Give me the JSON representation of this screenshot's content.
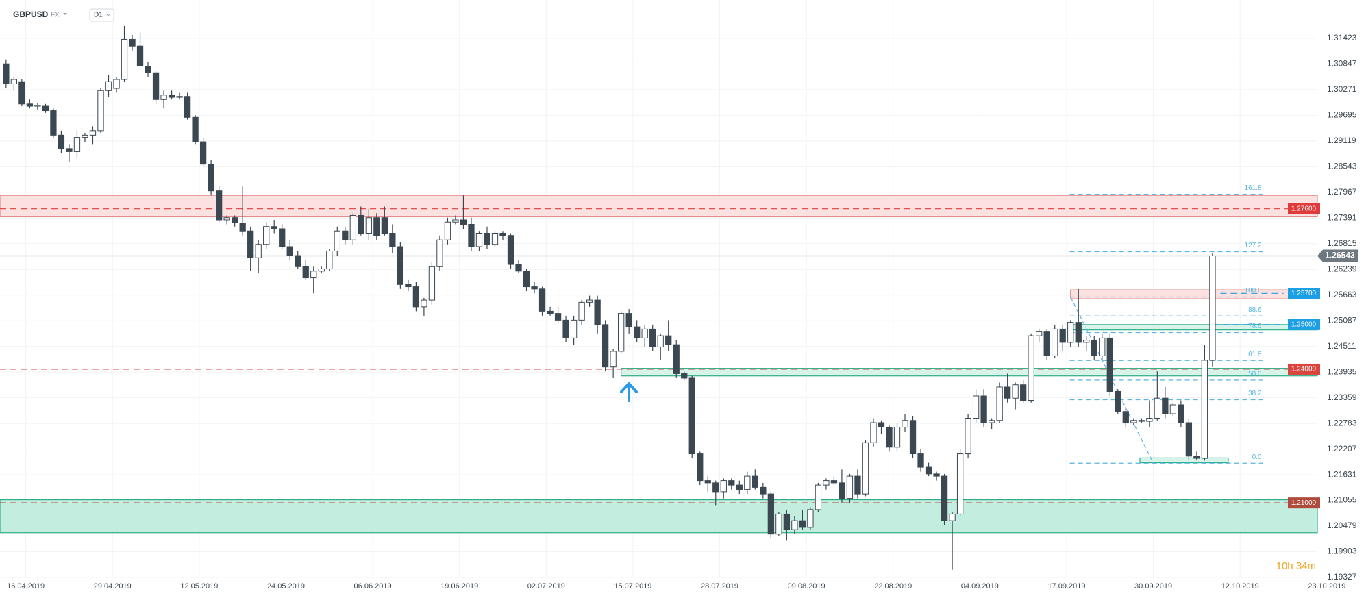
{
  "chart_data": {
    "type": "candlestick",
    "title": "GBPUSD",
    "market": "FX",
    "interval": "D1",
    "timer": "10h 34m",
    "xlim": [
      -0.77,
      166.3
    ],
    "ylim": [
      1.19327,
      1.32283
    ],
    "xticks": [
      {
        "value": 2.5,
        "label": "16.04.2019"
      },
      {
        "value": 13.5,
        "label": "29.04.2019"
      },
      {
        "value": 24.5,
        "label": "12.05.2019"
      },
      {
        "value": 35.5,
        "label": "24.05.2019"
      },
      {
        "value": 46.5,
        "label": "06.06.2019"
      },
      {
        "value": 57.5,
        "label": "19.06.2019"
      },
      {
        "value": 68.5,
        "label": "02.07.2019"
      },
      {
        "value": 79.5,
        "label": "15.07.2019"
      },
      {
        "value": 90.5,
        "label": "28.07.2019"
      },
      {
        "value": 101.5,
        "label": "09.08.2019"
      },
      {
        "value": 112.5,
        "label": "22.08.2019"
      },
      {
        "value": 123.5,
        "label": "04.09.2019"
      },
      {
        "value": 134.5,
        "label": "17.09.2019"
      },
      {
        "value": 145.5,
        "label": "30.09.2019"
      },
      {
        "value": 156.5,
        "label": "12.10.2019"
      },
      {
        "value": 167.5,
        "label": "23.10.2019"
      }
    ],
    "yticks": [
      1.31423,
      1.30847,
      1.30271,
      1.29695,
      1.29119,
      1.28543,
      1.27967,
      1.27391,
      1.26815,
      1.26239,
      1.25663,
      1.25087,
      1.24511,
      1.23935,
      1.23359,
      1.22783,
      1.22207,
      1.21631,
      1.21055,
      1.20479,
      1.19903,
      1.19327
    ],
    "grid": true,
    "up_color": "#ffffff",
    "down_color": "#3b4852",
    "ohlc": [
      [
        1.3085,
        1.3095,
        1.303,
        1.304
      ],
      [
        1.304,
        1.3055,
        1.3025,
        1.305
      ],
      [
        1.3045,
        1.305,
        1.299,
        1.2995
      ],
      [
        1.2995,
        1.3005,
        1.2985,
        1.299
      ],
      [
        1.299,
        1.2998,
        1.2982,
        1.2992
      ],
      [
        1.299,
        1.2995,
        1.2975,
        1.298
      ],
      [
        1.298,
        1.2985,
        1.292,
        1.2925
      ],
      [
        1.2925,
        1.2935,
        1.2885,
        1.2895
      ],
      [
        1.2895,
        1.2905,
        1.2865,
        1.2888
      ],
      [
        1.2888,
        1.2935,
        1.2875,
        1.292
      ],
      [
        1.292,
        1.293,
        1.291,
        1.2925
      ],
      [
        1.2925,
        1.2945,
        1.2905,
        1.2935
      ],
      [
        1.2935,
        1.303,
        1.293,
        1.3025
      ],
      [
        1.3025,
        1.306,
        1.301,
        1.3045
      ],
      [
        1.303,
        1.3055,
        1.302,
        1.305
      ],
      [
        1.305,
        1.317,
        1.3045,
        1.314
      ],
      [
        1.314,
        1.315,
        1.3115,
        1.3125
      ],
      [
        1.3125,
        1.3155,
        1.308,
        1.308
      ],
      [
        1.308,
        1.309,
        1.3055,
        1.3065
      ],
      [
        1.3065,
        1.307,
        1.2995,
        1.3005
      ],
      [
        1.3005,
        1.3025,
        1.2985,
        1.3015
      ],
      [
        1.3015,
        1.3025,
        1.3005,
        1.301
      ],
      [
        1.301,
        1.302,
        1.3005,
        1.3012
      ],
      [
        1.3012,
        1.302,
        1.296,
        1.2965
      ],
      [
        1.2965,
        1.297,
        1.2905,
        1.291
      ],
      [
        1.291,
        1.292,
        1.2855,
        1.286
      ],
      [
        1.286,
        1.287,
        1.279,
        1.28
      ],
      [
        1.28,
        1.281,
        1.273,
        1.2735
      ],
      [
        1.2735,
        1.2745,
        1.2725,
        1.274
      ],
      [
        1.274,
        1.2745,
        1.272,
        1.2728
      ],
      [
        1.2728,
        1.281,
        1.27,
        1.271
      ],
      [
        1.271,
        1.272,
        1.262,
        1.265
      ],
      [
        1.265,
        1.269,
        1.2615,
        1.268
      ],
      [
        1.268,
        1.273,
        1.267,
        1.272
      ],
      [
        1.272,
        1.2735,
        1.2705,
        1.2715
      ],
      [
        1.2715,
        1.2725,
        1.267,
        1.2675
      ],
      [
        1.2675,
        1.269,
        1.2645,
        1.2655
      ],
      [
        1.2655,
        1.2665,
        1.2625,
        1.263
      ],
      [
        1.263,
        1.2645,
        1.26,
        1.2605
      ],
      [
        1.2605,
        1.263,
        1.257,
        1.262
      ],
      [
        1.262,
        1.263,
        1.2615,
        1.2625
      ],
      [
        1.2625,
        1.267,
        1.262,
        1.2665
      ],
      [
        1.2665,
        1.272,
        1.2655,
        1.271
      ],
      [
        1.271,
        1.272,
        1.268,
        1.269
      ],
      [
        1.269,
        1.275,
        1.268,
        1.2745
      ],
      [
        1.2745,
        1.2765,
        1.27,
        1.2705
      ],
      [
        1.2705,
        1.276,
        1.269,
        1.274
      ],
      [
        1.274,
        1.275,
        1.269,
        1.27
      ],
      [
        1.274,
        1.2765,
        1.27,
        1.2705
      ],
      [
        1.2705,
        1.2725,
        1.266,
        1.2675
      ],
      [
        1.2675,
        1.2685,
        1.258,
        1.259
      ],
      [
        1.259,
        1.26,
        1.2575,
        1.2585
      ],
      [
        1.2585,
        1.2595,
        1.253,
        1.254
      ],
      [
        1.254,
        1.256,
        1.252,
        1.2555
      ],
      [
        1.2555,
        1.264,
        1.2545,
        1.263
      ],
      [
        1.263,
        1.27,
        1.262,
        1.269
      ],
      [
        1.269,
        1.274,
        1.268,
        1.273
      ],
      [
        1.273,
        1.2745,
        1.2725,
        1.2735
      ],
      [
        1.2735,
        1.279,
        1.2715,
        1.2725
      ],
      [
        1.2725,
        1.274,
        1.2665,
        1.2675
      ],
      [
        1.2675,
        1.271,
        1.2665,
        1.2705
      ],
      [
        1.2705,
        1.272,
        1.267,
        1.268
      ],
      [
        1.268,
        1.271,
        1.2675,
        1.2705
      ],
      [
        1.2705,
        1.271,
        1.269,
        1.27
      ],
      [
        1.27,
        1.2705,
        1.2625,
        1.2635
      ],
      [
        1.2635,
        1.2645,
        1.2615,
        1.262
      ],
      [
        1.262,
        1.2625,
        1.2575,
        1.2585
      ],
      [
        1.2585,
        1.2595,
        1.257,
        1.258
      ],
      [
        1.258,
        1.2585,
        1.252,
        1.253
      ],
      [
        1.253,
        1.254,
        1.252,
        1.2525
      ],
      [
        1.2525,
        1.254,
        1.2505,
        1.251
      ],
      [
        1.251,
        1.252,
        1.246,
        1.247
      ],
      [
        1.247,
        1.252,
        1.2455,
        1.251
      ],
      [
        1.251,
        1.2555,
        1.25,
        1.255
      ],
      [
        1.255,
        1.2565,
        1.254,
        1.2555
      ],
      [
        1.2555,
        1.2565,
        1.248,
        1.25
      ],
      [
        1.25,
        1.251,
        1.2395,
        1.2405
      ],
      [
        1.2405,
        1.2445,
        1.238,
        1.244
      ],
      [
        1.244,
        1.253,
        1.2435,
        1.2525
      ],
      [
        1.2525,
        1.2535,
        1.248,
        1.2495
      ],
      [
        1.2495,
        1.251,
        1.246,
        1.247
      ],
      [
        1.247,
        1.25,
        1.245,
        1.249
      ],
      [
        1.249,
        1.25,
        1.244,
        1.245
      ],
      [
        1.245,
        1.248,
        1.242,
        1.2475
      ],
      [
        1.2475,
        1.251,
        1.244,
        1.2455
      ],
      [
        1.2455,
        1.2465,
        1.238,
        1.239
      ],
      [
        1.239,
        1.2395,
        1.2375,
        1.238
      ],
      [
        1.238,
        1.2385,
        1.22,
        1.221
      ],
      [
        1.221,
        1.2215,
        1.214,
        1.215
      ],
      [
        1.215,
        1.216,
        1.2125,
        1.2145
      ],
      [
        1.2145,
        1.215,
        1.2095,
        1.2125
      ],
      [
        1.2125,
        1.2155,
        1.211,
        1.215
      ],
      [
        1.215,
        1.2155,
        1.213,
        1.214
      ],
      [
        1.214,
        1.215,
        1.212,
        1.213
      ],
      [
        1.213,
        1.217,
        1.212,
        1.216
      ],
      [
        1.216,
        1.2175,
        1.213,
        1.2135
      ],
      [
        1.2135,
        1.2145,
        1.211,
        1.212
      ],
      [
        1.212,
        1.2125,
        1.202,
        1.203
      ],
      [
        1.203,
        1.208,
        1.2025,
        1.2075
      ],
      [
        1.2075,
        1.2085,
        1.2015,
        1.204
      ],
      [
        1.204,
        1.207,
        1.203,
        1.206
      ],
      [
        1.206,
        1.2085,
        1.204,
        1.2045
      ],
      [
        1.2045,
        1.209,
        1.204,
        1.2085
      ],
      [
        1.2085,
        1.2145,
        1.208,
        1.214
      ],
      [
        1.214,
        1.2155,
        1.213,
        1.215
      ],
      [
        1.215,
        1.216,
        1.214,
        1.2145
      ],
      [
        1.2145,
        1.2175,
        1.21,
        1.211
      ],
      [
        1.211,
        1.2165,
        1.21,
        1.216
      ],
      [
        1.216,
        1.2175,
        1.211,
        1.212
      ],
      [
        1.212,
        1.224,
        1.2115,
        1.2235
      ],
      [
        1.2235,
        1.229,
        1.2225,
        1.228
      ],
      [
        1.228,
        1.2285,
        1.2255,
        1.227
      ],
      [
        1.227,
        1.2275,
        1.2215,
        1.2225
      ],
      [
        1.2225,
        1.228,
        1.2215,
        1.227
      ],
      [
        1.227,
        1.23,
        1.226,
        1.2285
      ],
      [
        1.2285,
        1.2295,
        1.22,
        1.221
      ],
      [
        1.221,
        1.222,
        1.217,
        1.218
      ],
      [
        1.218,
        1.219,
        1.216,
        1.2165
      ],
      [
        1.2165,
        1.217,
        1.215,
        1.216
      ],
      [
        1.216,
        1.2165,
        1.205,
        1.206
      ],
      [
        1.206,
        1.208,
        1.195,
        1.2075
      ],
      [
        1.2075,
        1.222,
        1.207,
        1.221
      ],
      [
        1.221,
        1.23,
        1.22,
        1.229
      ],
      [
        1.229,
        1.2355,
        1.228,
        1.234
      ],
      [
        1.234,
        1.2355,
        1.227,
        1.228
      ],
      [
        1.228,
        1.229,
        1.2265,
        1.2285
      ],
      [
        1.2285,
        1.237,
        1.228,
        1.236
      ],
      [
        1.236,
        1.239,
        1.2325,
        1.2335
      ],
      [
        1.2335,
        1.237,
        1.231,
        1.2365
      ],
      [
        1.2365,
        1.2375,
        1.2325,
        1.233
      ],
      [
        1.233,
        1.248,
        1.2325,
        1.2475
      ],
      [
        1.2475,
        1.249,
        1.246,
        1.2485
      ],
      [
        1.2485,
        1.249,
        1.242,
        1.243
      ],
      [
        1.243,
        1.25,
        1.2425,
        1.249
      ],
      [
        1.249,
        1.25,
        1.244,
        1.246
      ],
      [
        1.246,
        1.251,
        1.245,
        1.2505
      ],
      [
        1.2505,
        1.258,
        1.245,
        1.246
      ],
      [
        1.246,
        1.2475,
        1.244,
        1.2465
      ],
      [
        1.2465,
        1.2475,
        1.242,
        1.243
      ],
      [
        1.243,
        1.248,
        1.242,
        1.247
      ],
      [
        1.247,
        1.248,
        1.234,
        1.235
      ],
      [
        1.235,
        1.2355,
        1.23,
        1.2305
      ],
      [
        1.2305,
        1.2315,
        1.227,
        1.228
      ],
      [
        1.228,
        1.229,
        1.2275,
        1.2285
      ],
      [
        1.2285,
        1.229,
        1.228,
        1.2283
      ],
      [
        1.2283,
        1.233,
        1.227,
        1.229
      ],
      [
        1.229,
        1.2395,
        1.2285,
        1.2335
      ],
      [
        1.2335,
        1.236,
        1.229,
        1.23
      ],
      [
        1.23,
        1.2325,
        1.2295,
        1.232
      ],
      [
        1.232,
        1.233,
        1.227,
        1.228
      ],
      [
        1.228,
        1.229,
        1.2195,
        1.2205
      ],
      [
        1.2205,
        1.2215,
        1.2195,
        1.22
      ],
      [
        1.22,
        1.2455,
        1.2195,
        1.242
      ],
      [
        1.242,
        1.266,
        1.2405,
        1.26543
      ]
    ],
    "last": 1.26543,
    "zones": [
      {
        "from": 1.2742,
        "to": 1.279,
        "color": "#fcdede",
        "border": "#e58a8a"
      },
      {
        "from": 1.2033,
        "to": 1.2107,
        "color": "#bdebdb",
        "border": "#2fae86"
      },
      {
        "from": 1.2385,
        "to": 1.2402,
        "color": "#d4f3e8",
        "border": "#2fae86"
      },
      {
        "from": 1.2558,
        "to": 1.2578,
        "color": "#fcdede",
        "border": "#e58a8a"
      },
      {
        "from": 1.2488,
        "to": 1.25,
        "color": "#d4f3e8",
        "border": "#2fae86"
      },
      {
        "from": 1.219,
        "to": 1.2201,
        "color": "#d4f3e8",
        "border": "#2fae86"
      }
    ],
    "levels": [
      {
        "value": 1.276,
        "label": "1.27600",
        "color": "#e03b3b"
      },
      {
        "value": 1.257,
        "label": "1.25700",
        "color": "#1c9fe4"
      },
      {
        "value": 1.25,
        "label": "1.25000",
        "color": "#1c9fe4"
      },
      {
        "value": 1.24,
        "label": "1.24000",
        "color": "#d9443c"
      },
      {
        "value": 1.21,
        "label": "1.21000",
        "color": "#b04a3c"
      }
    ],
    "fib": {
      "low": 1.2189,
      "high": 1.2562,
      "color": "#5ab6e2",
      "levels": [
        161.8,
        127.2,
        {
          "value": 100,
          "label": "100.0"
        },
        88.6,
        78.6,
        61.8,
        {
          "value": 50,
          "label": "50.0"
        },
        38.2,
        {
          "value": 0,
          "label": "0.0"
        }
      ]
    }
  }
}
